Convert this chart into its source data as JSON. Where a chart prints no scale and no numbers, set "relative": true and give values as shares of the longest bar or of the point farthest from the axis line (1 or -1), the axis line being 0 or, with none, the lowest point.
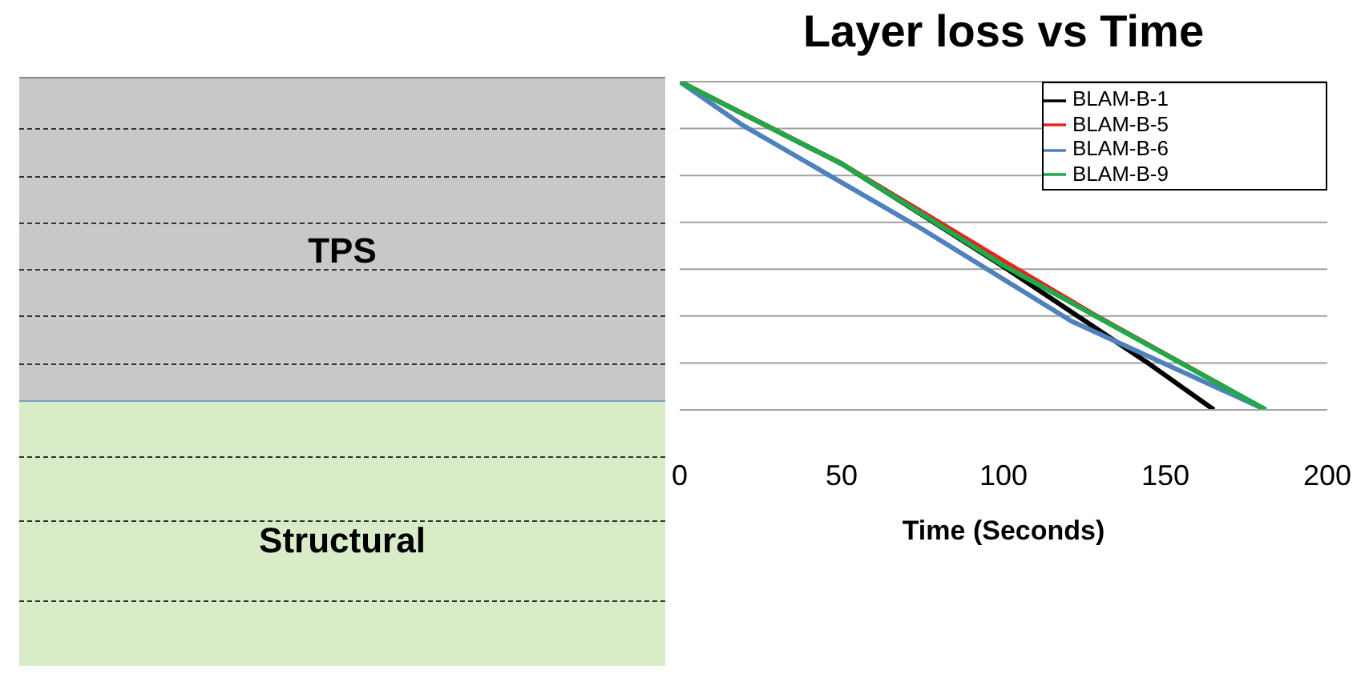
{
  "chart_data": {
    "type": "line",
    "title": "Layer loss vs Time",
    "xlabel": "Time (Seconds)",
    "relative": true,
    "xlim": [
      0,
      200
    ],
    "xticks": [
      0,
      50,
      100,
      150,
      200
    ],
    "grid": "y",
    "legend": "top right",
    "marker": "none",
    "line_style": "solid",
    "annotations": [
      "TPS",
      "Structural"
    ],
    "series": [
      {
        "name": "BLAM-B-1",
        "color": "#000000",
        "x": [
          0,
          50,
          101,
          145,
          165
        ],
        "values": [
          1,
          0.75,
          0.43,
          0.14,
          0
        ]
      },
      {
        "name": "BLAM-B-5",
        "color": "#e8231f",
        "x": [
          0,
          50,
          104,
          128,
          181
        ],
        "values": [
          1,
          0.75,
          0.43,
          0.29,
          0
        ]
      },
      {
        "name": "BLAM-B-6",
        "color": "#4f81bd",
        "x": [
          0,
          19,
          75,
          121,
          181
        ],
        "values": [
          1,
          0.87,
          0.55,
          0.27,
          0
        ]
      },
      {
        "name": "BLAM-B-9",
        "color": "#1faa4a",
        "x": [
          0,
          50,
          100,
          181
        ],
        "values": [
          1,
          0.75,
          0.44,
          0
        ]
      }
    ]
  }
}
